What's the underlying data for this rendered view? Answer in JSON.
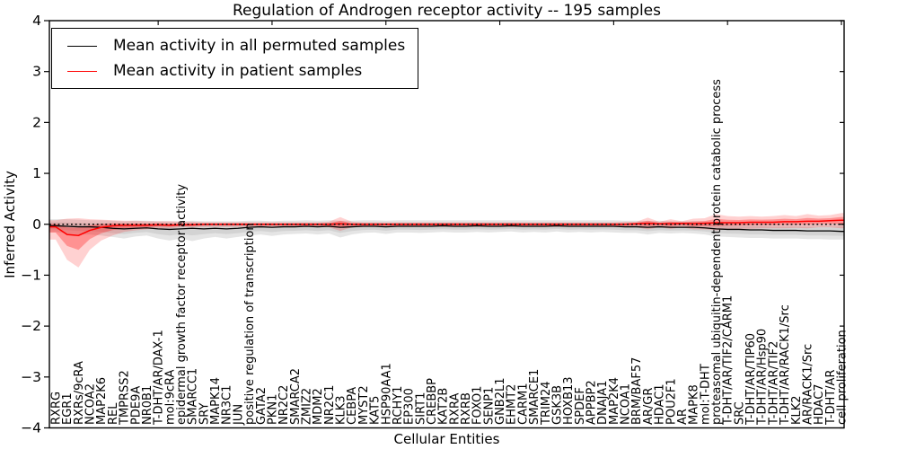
{
  "chart_data": {
    "type": "line",
    "title": "Regulation of Androgen receptor activity -- 195 samples",
    "xlabel": "Cellular Entities",
    "ylabel": "Inferred Activity",
    "ylim": [
      -4,
      4
    ],
    "yticks": [
      4,
      3,
      2,
      1,
      0,
      -1,
      -2,
      -3,
      -4
    ],
    "grid": false,
    "legend_position": "upper left",
    "colors": {
      "background": "#ffffff",
      "frame": "#000000",
      "permuted": "#000000",
      "patient": "#ff0000"
    },
    "zero_reference_line": {
      "y": 0,
      "style": "dotted",
      "color": "#000000"
    },
    "major_xtick_indices": [
      9,
      19,
      29,
      39,
      49,
      59,
      69
    ],
    "categories": [
      "RXRG",
      "EGR1",
      "RXRs/9cRA",
      "NCOA2",
      "MAP2K6",
      "REL",
      "TMPRSS2",
      "PDE9A",
      "NR0B1",
      "T-DHT/AR/DAX-1",
      "mol:9cRA",
      "epidermal growth factor receptor activity",
      "SMARCC1",
      "SRY",
      "MAPK14",
      "NR3C1",
      "JUN",
      "positive regulation of transcription",
      "GATA2",
      "PKN1",
      "NR2C2",
      "SMARCA2",
      "ZMIZ2",
      "MDM2",
      "NR2C1",
      "KLK3",
      "CEBPA",
      "MYST2",
      "KAT5",
      "HSP90AA1",
      "RCHY1",
      "EP300",
      "SIRT1",
      "CREBBP",
      "KAT2B",
      "RXRA",
      "RXRB",
      "FOXO1",
      "SENP1",
      "GNB2L1",
      "EHMT2",
      "CARM1",
      "SMARCE1",
      "TRIM24",
      "GSK3B",
      "HOXB13",
      "SPDEF",
      "APPBP2",
      "DNAJA1",
      "MAP2K4",
      "NCOA1",
      "BRM/BAF57",
      "AR/GR",
      "HDAC1",
      "POU2F1",
      "AR",
      "MAPK8",
      "mol:T-DHT",
      "proteasomal ubiquitin-dependent protein catabolic process",
      "T-DHT/AR/TIF2/CARM1",
      "SRC",
      "T-DHT/AR/TIP60",
      "T-DHT/AR/Hsp90",
      "T-DHT/AR/TIF2",
      "T-DHT/AR/RACK1/Src",
      "KLK2",
      "AR/RACK1/Src",
      "HDAC7",
      "T-DHT/AR",
      "cell proliferation"
    ],
    "series": [
      {
        "name": "Mean activity in all permuted samples",
        "color": "#000000",
        "band_color": "#000000",
        "band_alpha_outer": 0.1,
        "band_alpha_inner": 0.08,
        "band_inner_scale": 0.55,
        "values": [
          -0.03,
          -0.04,
          -0.05,
          -0.05,
          -0.06,
          -0.08,
          -0.09,
          -0.08,
          -0.07,
          -0.09,
          -0.1,
          -0.09,
          -0.08,
          -0.09,
          -0.08,
          -0.09,
          -0.08,
          -0.06,
          -0.05,
          -0.06,
          -0.05,
          -0.05,
          -0.04,
          -0.05,
          -0.04,
          -0.06,
          -0.05,
          -0.04,
          -0.04,
          -0.05,
          -0.04,
          -0.04,
          -0.04,
          -0.04,
          -0.03,
          -0.04,
          -0.04,
          -0.03,
          -0.04,
          -0.04,
          -0.03,
          -0.04,
          -0.04,
          -0.04,
          -0.03,
          -0.04,
          -0.04,
          -0.04,
          -0.04,
          -0.04,
          -0.05,
          -0.05,
          -0.06,
          -0.05,
          -0.06,
          -0.06,
          -0.06,
          -0.07,
          -0.09,
          -0.1,
          -0.1,
          -0.11,
          -0.11,
          -0.12,
          -0.12,
          -0.12,
          -0.13,
          -0.13,
          -0.13,
          -0.14
        ],
        "band_upper": [
          0.1,
          0.1,
          0.09,
          0.08,
          0.08,
          0.07,
          0.06,
          0.07,
          0.07,
          0.06,
          0.06,
          0.06,
          0.07,
          0.06,
          0.06,
          0.06,
          0.06,
          0.07,
          0.07,
          0.06,
          0.07,
          0.07,
          0.08,
          0.07,
          0.08,
          0.07,
          0.07,
          0.08,
          0.08,
          0.07,
          0.08,
          0.08,
          0.08,
          0.08,
          0.08,
          0.08,
          0.08,
          0.08,
          0.08,
          0.08,
          0.08,
          0.08,
          0.08,
          0.08,
          0.08,
          0.08,
          0.08,
          0.08,
          0.08,
          0.08,
          0.07,
          0.07,
          0.06,
          0.07,
          0.06,
          0.06,
          0.06,
          0.05,
          0.03,
          0.02,
          0.02,
          0.02,
          0.02,
          0.01,
          0.01,
          0.01,
          0.01,
          0.01,
          0.02,
          0.03
        ],
        "band_lower": [
          -0.15,
          -0.18,
          -0.2,
          -0.2,
          -0.22,
          -0.25,
          -0.28,
          -0.24,
          -0.22,
          -0.28,
          -0.32,
          -0.28,
          -0.33,
          -0.28,
          -0.25,
          -0.28,
          -0.25,
          -0.22,
          -0.2,
          -0.23,
          -0.2,
          -0.19,
          -0.18,
          -0.2,
          -0.18,
          -0.26,
          -0.2,
          -0.17,
          -0.16,
          -0.19,
          -0.16,
          -0.16,
          -0.17,
          -0.16,
          -0.15,
          -0.16,
          -0.16,
          -0.15,
          -0.16,
          -0.15,
          -0.14,
          -0.16,
          -0.15,
          -0.16,
          -0.14,
          -0.16,
          -0.15,
          -0.16,
          -0.15,
          -0.16,
          -0.17,
          -0.17,
          -0.2,
          -0.17,
          -0.18,
          -0.17,
          -0.18,
          -0.2,
          -0.24,
          -0.25,
          -0.26,
          -0.27,
          -0.27,
          -0.28,
          -0.28,
          -0.28,
          -0.29,
          -0.29,
          -0.3,
          -0.3
        ]
      },
      {
        "name": "Mean activity in patient samples",
        "color": "#ff0000",
        "band_color": "#ff0000",
        "band_alpha_outer": 0.18,
        "band_alpha_inner": 0.3,
        "band_inner_scale": 0.45,
        "values": [
          -0.05,
          -0.2,
          -0.22,
          -0.12,
          -0.06,
          -0.03,
          -0.02,
          -0.02,
          -0.02,
          -0.01,
          -0.02,
          -0.01,
          -0.01,
          0.0,
          0.0,
          0.0,
          0.0,
          0.0,
          0.0,
          0.0,
          0.0,
          0.0,
          0.0,
          0.0,
          0.0,
          0.01,
          0.0,
          0.0,
          0.0,
          0.0,
          0.0,
          0.0,
          0.0,
          0.0,
          0.0,
          0.0,
          0.0,
          0.0,
          0.0,
          0.0,
          0.0,
          0.0,
          0.0,
          0.0,
          0.0,
          0.0,
          0.0,
          0.0,
          0.0,
          0.0,
          0.0,
          0.01,
          0.02,
          0.01,
          0.01,
          0.02,
          0.01,
          0.02,
          0.03,
          0.03,
          0.03,
          0.04,
          0.04,
          0.04,
          0.05,
          0.05,
          0.06,
          0.06,
          0.07,
          0.08
        ],
        "band_upper": [
          0.08,
          0.11,
          0.12,
          0.1,
          0.09,
          0.08,
          0.07,
          0.07,
          0.06,
          0.06,
          0.06,
          0.05,
          0.05,
          0.04,
          0.04,
          0.04,
          0.04,
          0.04,
          0.04,
          0.04,
          0.04,
          0.04,
          0.04,
          0.04,
          0.05,
          0.14,
          0.05,
          0.04,
          0.04,
          0.04,
          0.04,
          0.04,
          0.04,
          0.04,
          0.04,
          0.04,
          0.04,
          0.04,
          0.04,
          0.04,
          0.04,
          0.04,
          0.04,
          0.04,
          0.04,
          0.04,
          0.04,
          0.04,
          0.04,
          0.04,
          0.05,
          0.05,
          0.13,
          0.05,
          0.1,
          0.06,
          0.11,
          0.12,
          0.2,
          0.16,
          0.15,
          0.16,
          0.15,
          0.16,
          0.18,
          0.16,
          0.2,
          0.17,
          0.18,
          0.22
        ],
        "band_lower": [
          -0.3,
          -0.7,
          -0.85,
          -0.5,
          -0.32,
          -0.22,
          -0.15,
          -0.12,
          -0.1,
          -0.08,
          -0.08,
          -0.06,
          -0.06,
          -0.05,
          -0.05,
          -0.05,
          -0.05,
          -0.05,
          -0.05,
          -0.05,
          -0.05,
          -0.05,
          -0.05,
          -0.05,
          -0.06,
          -0.13,
          -0.06,
          -0.05,
          -0.05,
          -0.05,
          -0.05,
          -0.05,
          -0.05,
          -0.05,
          -0.05,
          -0.05,
          -0.05,
          -0.05,
          -0.05,
          -0.05,
          -0.05,
          -0.05,
          -0.05,
          -0.05,
          -0.05,
          -0.05,
          -0.05,
          -0.05,
          -0.05,
          -0.05,
          -0.06,
          -0.06,
          -0.1,
          -0.06,
          -0.09,
          -0.06,
          -0.1,
          -0.1,
          -0.12,
          -0.1,
          -0.09,
          -0.09,
          -0.08,
          -0.08,
          -0.08,
          -0.07,
          -0.08,
          -0.06,
          -0.06,
          -0.08
        ]
      }
    ]
  }
}
